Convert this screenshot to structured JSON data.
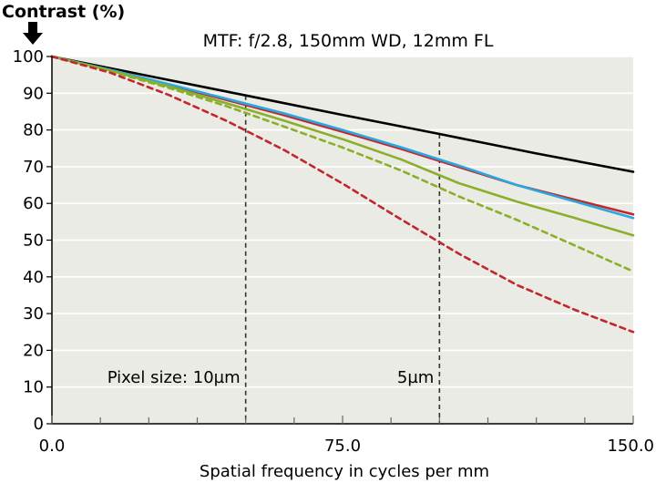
{
  "chart_data": {
    "type": "line",
    "title": "MTF: f/2.8, 150mm WD, 12mm FL",
    "ylabel": "Contrast (%)",
    "xlabel": "Spatial frequency in cycles per mm",
    "xlim": [
      0,
      150
    ],
    "ylim": [
      0,
      100
    ],
    "x_ticks": [
      0,
      75,
      150
    ],
    "x_tick_labels": [
      "0.0",
      "75.0",
      "150.0"
    ],
    "y_ticks": [
      0,
      10,
      20,
      30,
      40,
      50,
      60,
      70,
      80,
      90,
      100
    ],
    "y_tick_labels": [
      "0",
      "10",
      "20",
      "30",
      "40",
      "50",
      "60",
      "70",
      "80",
      "90",
      "100"
    ],
    "grid": "horizontal",
    "plot_background": "#ebebe5",
    "series": [
      {
        "color": "#000000",
        "dash": "solid",
        "x": [
          0,
          25,
          50,
          75,
          100,
          125,
          150
        ],
        "y": [
          100,
          94.7,
          89.4,
          84.1,
          78.9,
          73.6,
          68.6
        ]
      },
      {
        "color": "#c1272d",
        "dash": "solid",
        "x": [
          0,
          15,
          30,
          45,
          60,
          75,
          90,
          105,
          120,
          135,
          150
        ],
        "y": [
          100,
          96.3,
          92.3,
          88.2,
          84.0,
          79.5,
          74.9,
          69.9,
          65.0,
          61.0,
          57.0
        ]
      },
      {
        "color": "#29a8e0",
        "dash": "solid",
        "x": [
          0,
          15,
          30,
          45,
          60,
          75,
          90,
          105,
          120,
          135,
          150
        ],
        "y": [
          100,
          96.4,
          92.5,
          88.5,
          84.5,
          80.0,
          75.3,
          70.3,
          65.0,
          60.5,
          56.0
        ]
      },
      {
        "color": "#8aaf2b",
        "dash": "solid",
        "x": [
          0,
          15,
          30,
          45,
          60,
          75,
          90,
          105,
          120,
          135,
          150
        ],
        "y": [
          100,
          96.2,
          91.9,
          87.3,
          82.5,
          77.5,
          72.0,
          65.5,
          60.5,
          56.0,
          51.3
        ]
      },
      {
        "color": "#8aaf2b",
        "dash": "dashed",
        "x": [
          0,
          15,
          30,
          45,
          60,
          75,
          90,
          105,
          120,
          135,
          150
        ],
        "y": [
          100,
          96.0,
          91.5,
          86.5,
          80.9,
          75.2,
          69.0,
          61.9,
          55.5,
          48.5,
          41.5
        ]
      },
      {
        "color": "#c1272d",
        "dash": "dashed",
        "x": [
          0,
          15,
          30,
          45,
          60,
          75,
          90,
          105,
          120,
          135,
          150
        ],
        "y": [
          100,
          95.6,
          89.6,
          82.5,
          74.5,
          65.4,
          55.7,
          46.3,
          37.8,
          31.0,
          25.0
        ]
      }
    ],
    "reference_lines": [
      {
        "x": 50,
        "label": "Pixel size: 10µm"
      },
      {
        "x": 100,
        "label": "5µm"
      }
    ]
  }
}
